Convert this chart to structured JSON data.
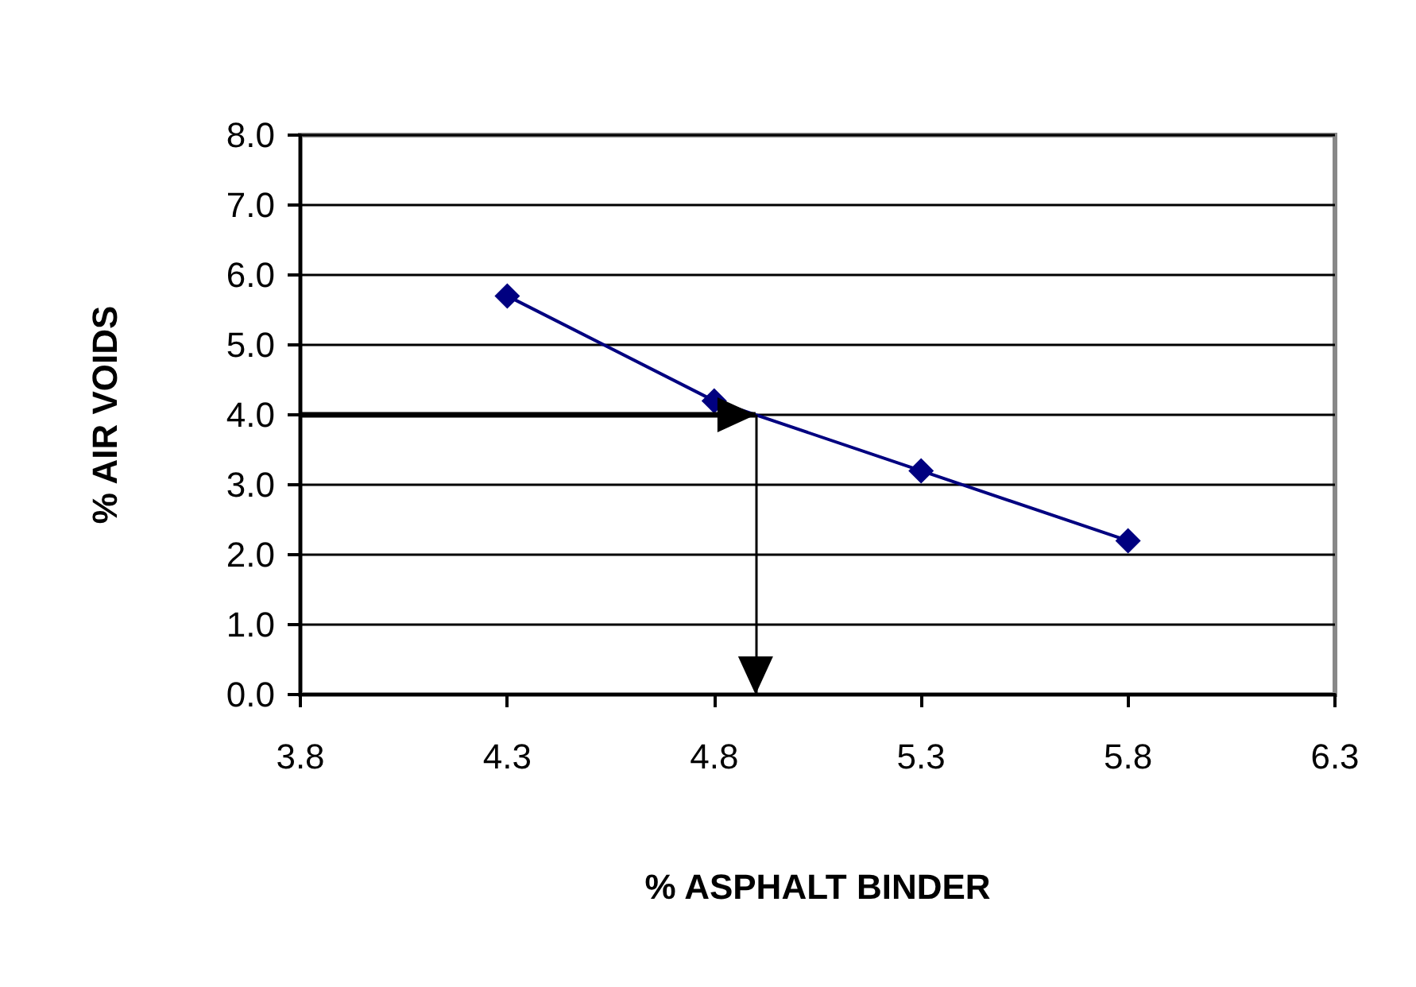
{
  "chart_data": {
    "type": "line",
    "xlabel": "% ASPHALT BINDER",
    "ylabel": "% AIR VOIDS",
    "x": [
      4.3,
      4.8,
      5.3,
      5.8
    ],
    "series": [
      {
        "color": "#000080",
        "values": [
          5.7,
          4.2,
          3.2,
          2.2
        ]
      }
    ],
    "xlim": [
      3.8,
      6.3
    ],
    "xticks": [
      3.8,
      4.3,
      4.8,
      5.3,
      5.8,
      6.3
    ],
    "ylim": [
      0,
      8
    ],
    "yticks": [
      {
        "value": 0,
        "label": "0.0"
      },
      {
        "value": 1,
        "label": "1.0"
      },
      {
        "value": 2,
        "label": "2.0"
      },
      {
        "value": 3,
        "label": "3.0"
      },
      {
        "value": 4,
        "label": "4.0"
      },
      {
        "value": 5,
        "label": "5.0"
      },
      {
        "value": 6,
        "label": "6.0"
      },
      {
        "value": 7,
        "label": "7.0"
      },
      {
        "value": 8,
        "label": "8.0"
      }
    ],
    "grid": "y",
    "marker": "diamond",
    "line_style": "solid",
    "ref_lines": [
      {
        "axis": "y",
        "value": 4,
        "color": "#000000"
      },
      {
        "axis": "x",
        "value": 4.9,
        "color": "#000000"
      }
    ]
  }
}
